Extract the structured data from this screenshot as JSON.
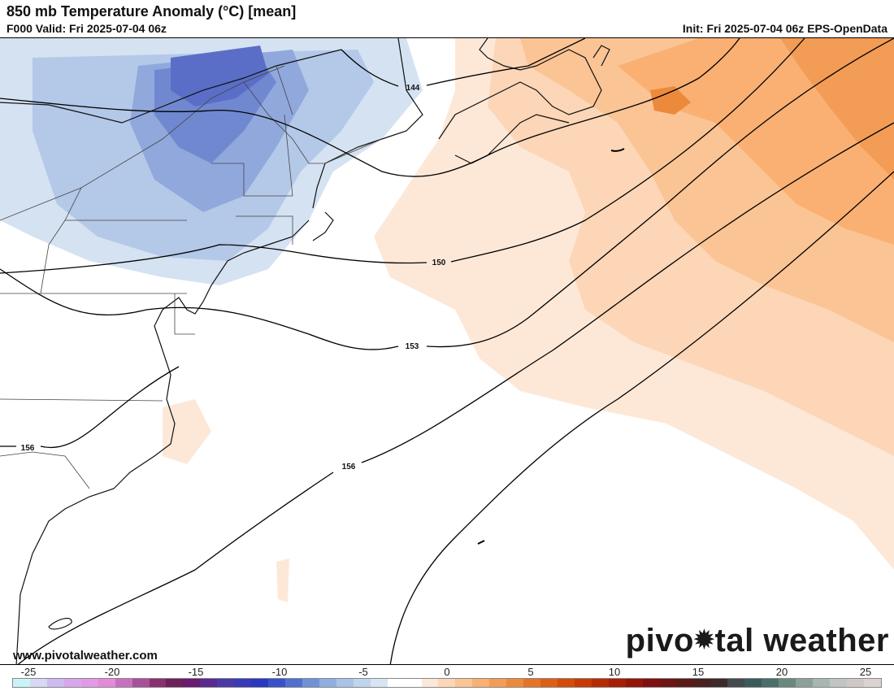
{
  "header": {
    "title": "850 mb Temperature Anomaly (°C) [mean]",
    "valid": "F000 Valid: Fri 2025-07-04 06z",
    "init": "Init: Fri 2025-07-04 06z EPS-OpenData"
  },
  "contour_labels": [
    "144",
    "150",
    "153",
    "156",
    "156"
  ],
  "footer": {
    "website": "www.pivotalweather.com",
    "brand_left": "pivo",
    "brand_right": "tal weather",
    "brand_gear": "✹"
  },
  "colorbar": {
    "ticks": [
      "-25",
      "-20",
      "-15",
      "-10",
      "-5",
      "0",
      "5",
      "10",
      "15",
      "20",
      "25"
    ],
    "colors": [
      "#c8f4f8",
      "#d6d8f4",
      "#cdbaf0",
      "#d9a6ee",
      "#e39ae6",
      "#e38ad8",
      "#c870c0",
      "#a8509a",
      "#8a3070",
      "#6e2058",
      "#6a1a70",
      "#5a2a90",
      "#4a3aa8",
      "#3a3ab8",
      "#2a38c0",
      "#3a52c8",
      "#5070d0",
      "#7090d8",
      "#90aee0",
      "#aac2e6",
      "#c0d4ec",
      "#d8e4f2",
      "#ffffff",
      "#ffffff",
      "#fde8d8",
      "#fcd6b6",
      "#fbc494",
      "#f9b072",
      "#f39c56",
      "#ec8a3c",
      "#e47426",
      "#dc6014",
      "#d44c08",
      "#c83a04",
      "#b82a02",
      "#a61e04",
      "#941408",
      "#801010",
      "#6e1414",
      "#5a1a1a",
      "#4a2020",
      "#3e2a2a",
      "#444a4e",
      "#3a5a5c",
      "#4a6e6a",
      "#6a8880",
      "#8aa098",
      "#a8b6b0",
      "#c0c4c2",
      "#d0c8c6",
      "#dcd2d2"
    ]
  }
}
